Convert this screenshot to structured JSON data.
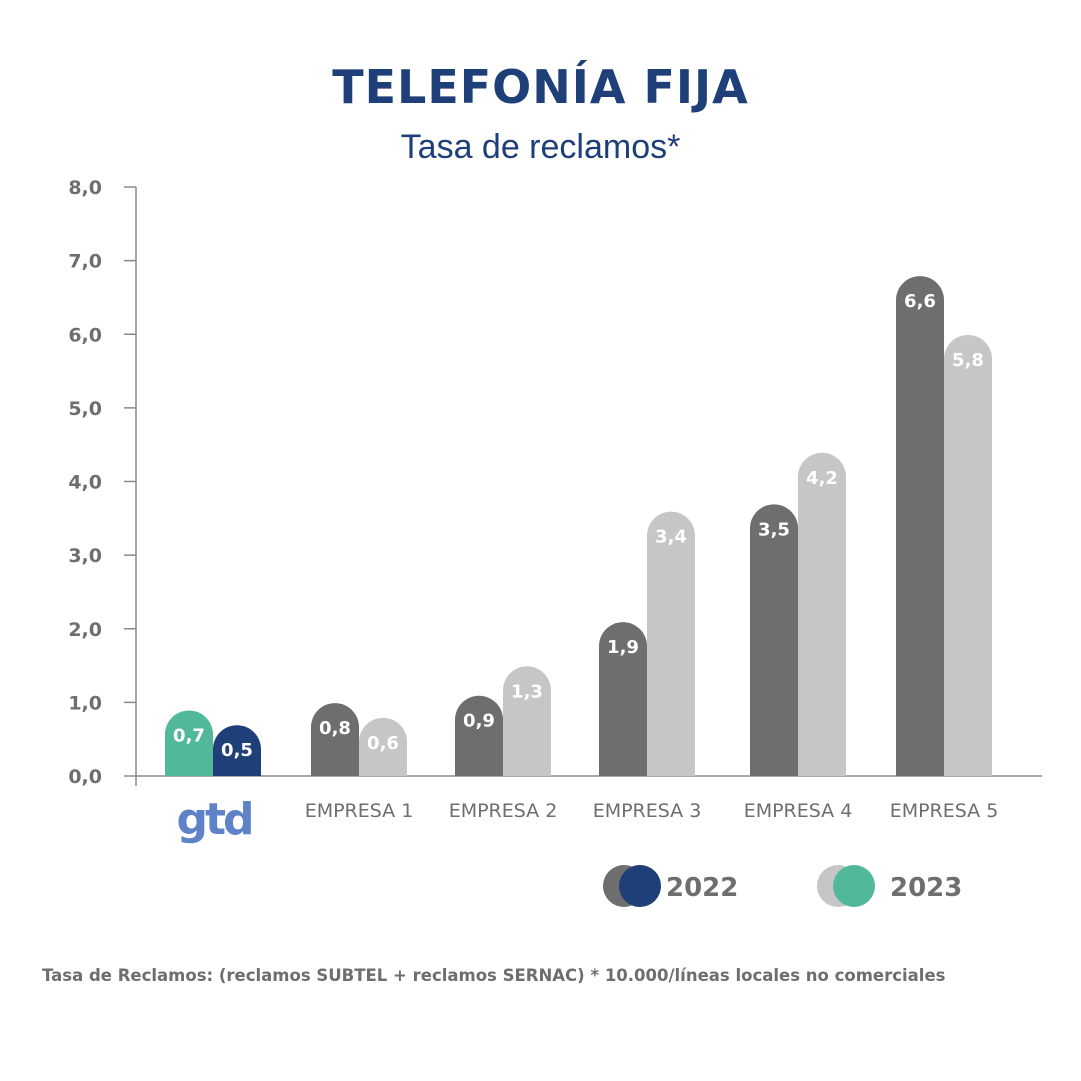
{
  "title": "TELEFONÍA FIJA",
  "subtitle": "Tasa de reclamos*",
  "footnote": "Tasa de Reclamos: (reclamos SUBTEL + reclamos SERNAC) * 10.000/líneas locales no comerciales",
  "logo": {
    "text": "gtd",
    "color": "#5d82c8"
  },
  "colors": {
    "s2022_gtd": "#1f3f78",
    "s2023_gtd": "#52b89a",
    "s2022": "#6e6e6e",
    "s2023": "#c6c6c6"
  },
  "chart_data": {
    "type": "bar",
    "title": "TELEFONÍA FIJA",
    "subtitle": "Tasa de reclamos*",
    "categories": [
      "gtd",
      "EMPRESA 1",
      "EMPRESA 2",
      "EMPRESA 3",
      "EMPRESA 4",
      "EMPRESA 5"
    ],
    "category_logo": [
      true,
      false,
      false,
      false,
      false,
      false
    ],
    "series": [
      {
        "name": "2022",
        "values": [
          0.5,
          0.8,
          0.9,
          1.9,
          3.5,
          6.6
        ],
        "labels": [
          "0,5",
          "0,8",
          "0,9",
          "1,9",
          "3,5",
          "6,6"
        ]
      },
      {
        "name": "2023",
        "values": [
          0.7,
          0.6,
          1.3,
          3.4,
          4.2,
          5.8
        ],
        "labels": [
          "0,7",
          "0,6",
          "1,3",
          "3,4",
          "4,2",
          "5,8"
        ]
      }
    ],
    "ylim": [
      0,
      8
    ],
    "yticks": [
      0,
      1,
      2,
      3,
      4,
      5,
      6,
      7,
      8
    ],
    "ytick_labels": [
      "0,0",
      "1,0",
      "2,0",
      "3,0",
      "4,0",
      "5,0",
      "6,0",
      "7,0",
      "8,0"
    ],
    "bar_order_first_category": [
      "2023",
      "2022"
    ],
    "grid": false,
    "legend": {
      "position": "bottom-right",
      "entries": [
        "2022",
        "2023"
      ]
    }
  }
}
